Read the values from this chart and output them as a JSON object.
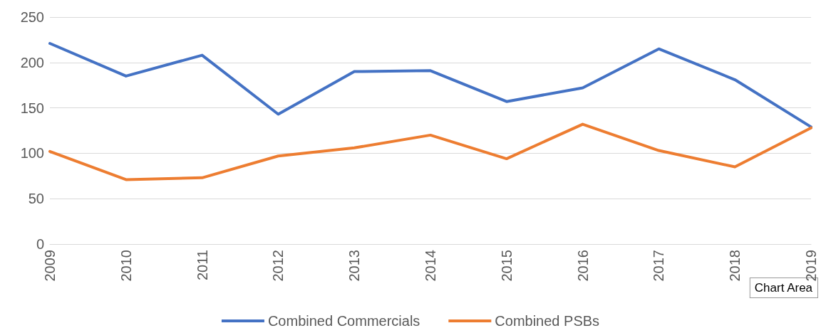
{
  "chart_data": {
    "type": "line",
    "categories": [
      "2009",
      "2010",
      "2011",
      "2012",
      "2013",
      "2014",
      "2015",
      "2016",
      "2017",
      "2018",
      "2019"
    ],
    "series": [
      {
        "name": "Combined Commercials",
        "color": "#4472c4",
        "values": [
          221,
          185,
          208,
          143,
          190,
          191,
          157,
          172,
          215,
          181,
          129
        ]
      },
      {
        "name": "Combined PSBs",
        "color": "#ed7d31",
        "values": [
          102,
          71,
          73,
          97,
          106,
          120,
          94,
          132,
          103,
          85,
          128
        ]
      }
    ],
    "ylim": [
      0,
      250
    ],
    "yticks": [
      0,
      50,
      100,
      150,
      200,
      250
    ],
    "grid": "y",
    "legend": "bottom",
    "marker": "none",
    "line_style": "solid",
    "annotations": [
      "Chart Area"
    ]
  }
}
